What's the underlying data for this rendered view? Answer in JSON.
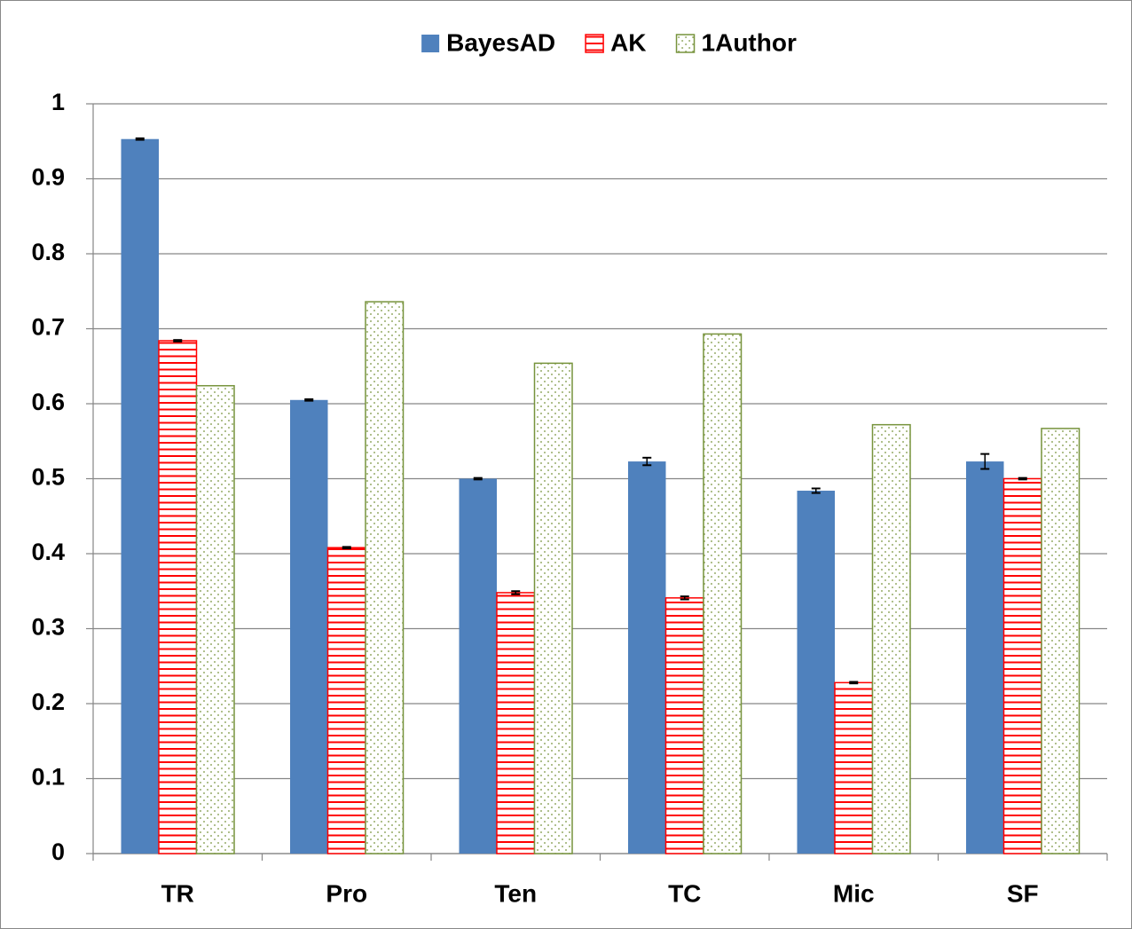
{
  "chart_data": {
    "type": "bar",
    "categories": [
      "TR",
      "Pro",
      "Ten",
      "TC",
      "Mic",
      "SF"
    ],
    "series": [
      {
        "name": "BayesAD",
        "color": "#4f81bd",
        "pattern": "solid",
        "values": [
          0.953,
          0.605,
          0.5,
          0.523,
          0.484,
          0.523
        ],
        "errors": [
          0.001,
          0.001,
          0.001,
          0.005,
          0.003,
          0.01
        ]
      },
      {
        "name": "AK",
        "color": "#ff0000",
        "pattern": "stripes",
        "values": [
          0.684,
          0.408,
          0.348,
          0.341,
          0.228,
          0.5
        ],
        "errors": [
          0.001,
          0.001,
          0.002,
          0.002,
          0.001,
          0.001
        ]
      },
      {
        "name": "1Author",
        "color": "#77933c",
        "pattern": "dots",
        "values": [
          0.624,
          0.736,
          0.654,
          0.693,
          0.572,
          0.567
        ]
      }
    ],
    "ylim": [
      0,
      1
    ],
    "yticks": [
      0,
      0.1,
      0.2,
      0.3,
      0.4,
      0.5,
      0.6,
      0.7,
      0.8,
      0.9,
      1
    ],
    "grid": true,
    "legend": "top"
  }
}
